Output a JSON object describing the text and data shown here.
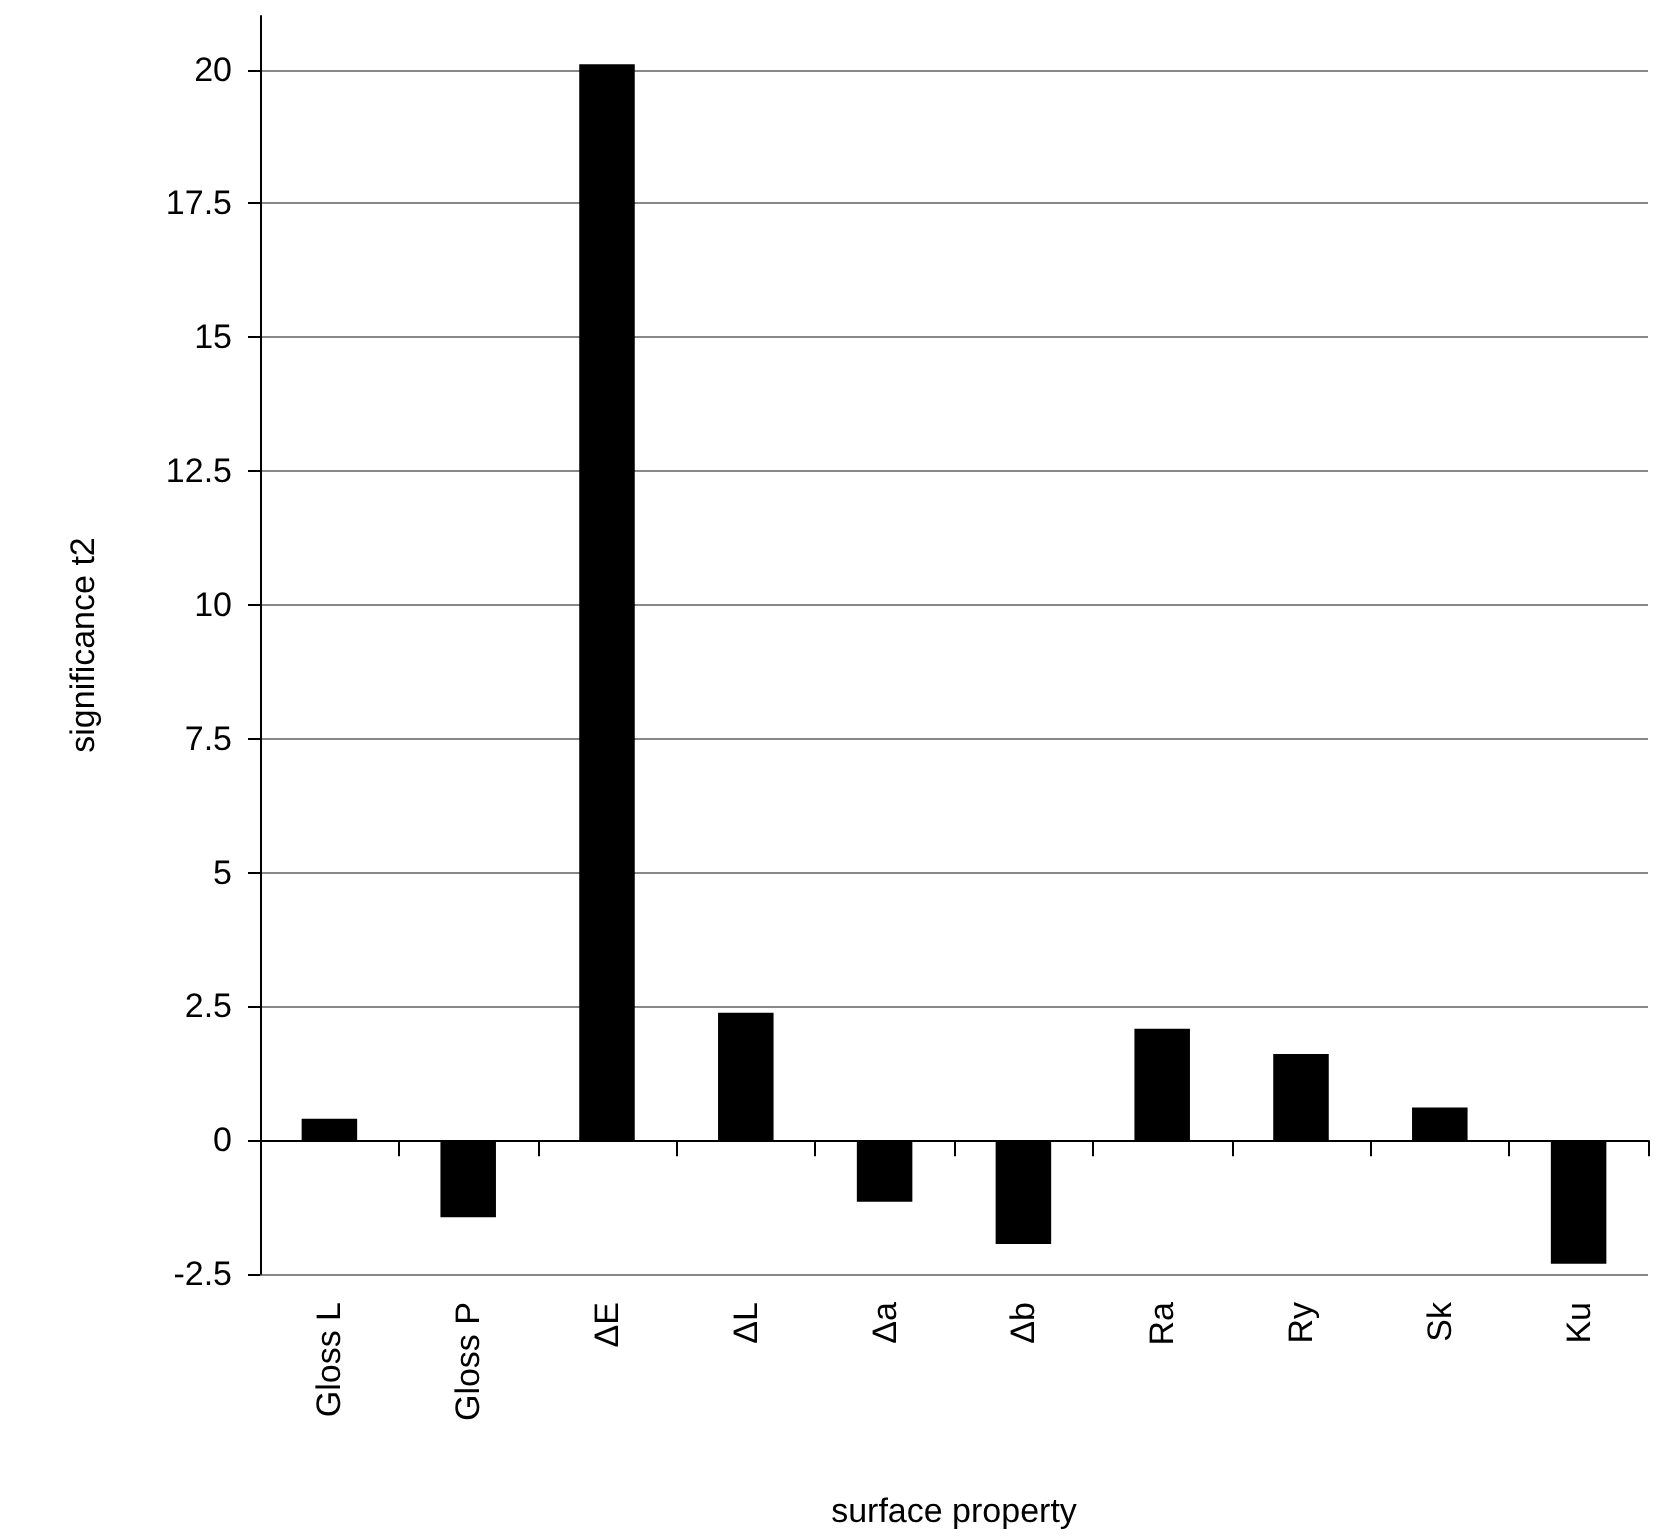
{
  "chart_data": {
    "type": "bar",
    "xlabel": "surface property",
    "ylabel": "significance t2",
    "categories": [
      "Gloss L",
      "Gloss P",
      "ΔE",
      "ΔL",
      "Δa",
      "Δb",
      "Ra",
      "Ry",
      "Sk",
      "Ku"
    ],
    "values": [
      0.4,
      -1.44,
      20.1,
      2.38,
      -1.15,
      -1.94,
      2.08,
      1.61,
      0.61,
      -2.31
    ],
    "color": "#000000",
    "ylim": [
      -2.5,
      21
    ],
    "yticks": [
      -2.5,
      0,
      2.5,
      5,
      7.5,
      10,
      12.5,
      15,
      17.5,
      20
    ],
    "grid": "y"
  }
}
